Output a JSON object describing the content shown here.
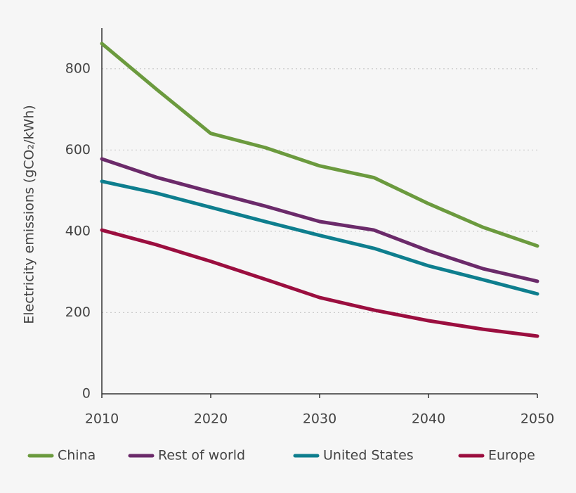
{
  "chart_data": {
    "type": "line",
    "y_label": "Electricity emissions (gCO₂/kWh)",
    "x": [
      2010,
      2015,
      2020,
      2025,
      2030,
      2035,
      2040,
      2045,
      2050
    ],
    "series": [
      {
        "name": "China",
        "color": "#6b9a3e",
        "values": [
          862,
          750,
          641,
          606,
          561,
          532,
          468,
          410,
          364
        ]
      },
      {
        "name": "Rest of world",
        "color": "#6b2a6a",
        "values": [
          578,
          533,
          497,
          462,
          424,
          403,
          352,
          308,
          277
        ]
      },
      {
        "name": "United States",
        "color": "#0e7e8e",
        "values": [
          523,
          494,
          459,
          424,
          390,
          358,
          315,
          281,
          246
        ]
      },
      {
        "name": "Europe",
        "color": "#9b0e3f",
        "values": [
          403,
          367,
          326,
          282,
          237,
          206,
          180,
          159,
          142
        ]
      }
    ],
    "xlim": [
      2010,
      2050
    ],
    "xticks": [
      2010,
      2020,
      2030,
      2040,
      2050
    ],
    "ylim": [
      0,
      900
    ],
    "yticks": [
      0,
      200,
      400,
      600,
      800
    ],
    "grid": true,
    "legend": "bottom"
  }
}
